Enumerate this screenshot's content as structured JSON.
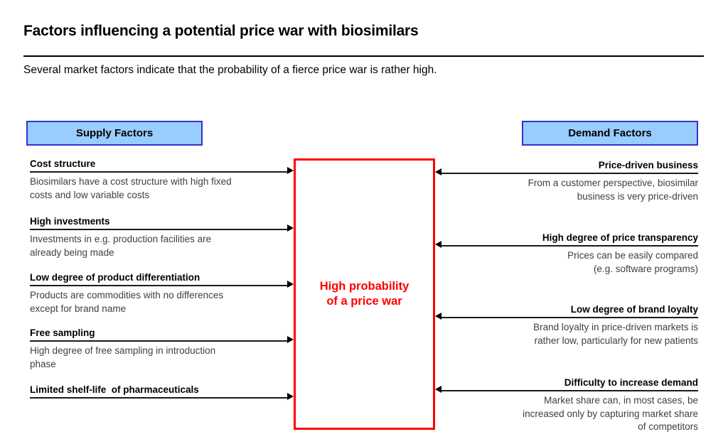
{
  "slide": {
    "title": "Factors influencing a potential price war with biosimilars",
    "subtitle": "Several market factors indicate that the probability of a fierce price war is rather high."
  },
  "colors": {
    "accent_red": "#FF0000",
    "header_fill": "#99CCFF",
    "header_border": "#3333CC",
    "arrow_black": "#000000"
  },
  "center_box": {
    "label": "High probability\nof a price war"
  },
  "supply": {
    "header": "Supply Factors",
    "items": [
      {
        "title": "Cost structure",
        "description": "Biosimilars have a cost structure with high fixed\ncosts and low variable costs"
      },
      {
        "title": "High investments",
        "description": "Investments in e.g. production facilities are\nalready being made"
      },
      {
        "title": "Low degree of product differentiation",
        "description": "Products are commodities with no differences\nexcept for brand name"
      },
      {
        "title": "Free sampling",
        "description": "High degree of free sampling in introduction\nphase"
      },
      {
        "title": "Limited shelf-life  of pharmaceuticals",
        "description": ""
      }
    ]
  },
  "demand": {
    "header": "Demand Factors",
    "items": [
      {
        "title": "Price-driven business",
        "description": "From a customer perspective, biosimilar\nbusiness is very price-driven"
      },
      {
        "title": "High degree of price transparency",
        "description": "Prices can be easily compared\n(e.g. software programs)"
      },
      {
        "title": "Low degree of brand loyalty",
        "description": "Brand loyalty in price-driven markets is\nrather low, particularly for new patients"
      },
      {
        "title": "Difficulty to increase demand",
        "description": "Market share can, in most cases, be\nincreased only by capturing market share\nof competitors"
      }
    ]
  }
}
